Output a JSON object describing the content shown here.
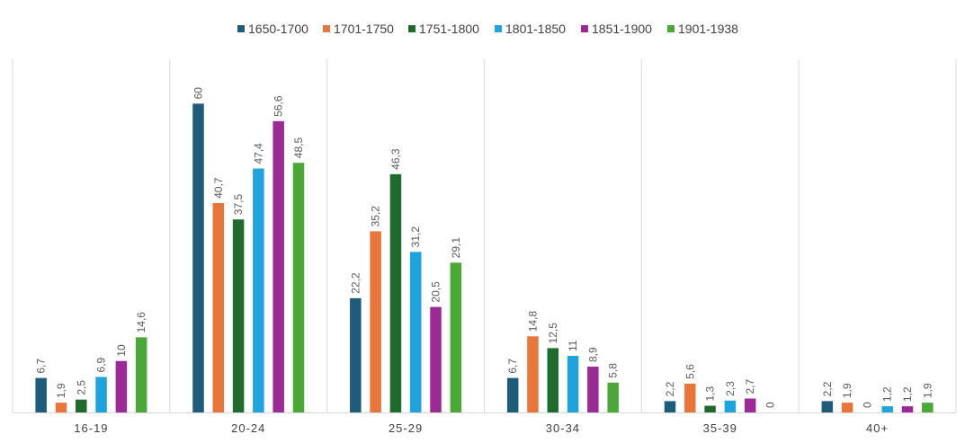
{
  "chart_data": {
    "type": "bar",
    "title": "",
    "xlabel": "",
    "ylabel": "",
    "ylim": [
      0,
      66
    ],
    "grid": false,
    "legend_position": "top",
    "categories": [
      "16-19",
      "20-24",
      "25-29",
      "30-34",
      "35-39",
      "40+"
    ],
    "value_labels": true,
    "series": [
      {
        "name": "1650-1700",
        "color": "#1f5c7a",
        "values": [
          6.7,
          60,
          22.2,
          6.7,
          2.2,
          2.2
        ],
        "labels": [
          "6,7",
          "60",
          "22,2",
          "6,7",
          "2,2",
          "2,2"
        ]
      },
      {
        "name": "1701-1750",
        "color": "#e8763a",
        "values": [
          1.9,
          40.7,
          35.2,
          14.8,
          5.6,
          1.9
        ],
        "labels": [
          "1,9",
          "40,7",
          "35,2",
          "14,8",
          "5,6",
          "1,9"
        ]
      },
      {
        "name": "1751-1800",
        "color": "#1e6b2e",
        "values": [
          2.5,
          37.5,
          46.3,
          12.5,
          1.3,
          0
        ],
        "labels": [
          "2,5",
          "37,5",
          "46,3",
          "12,5",
          "1,3",
          "0"
        ]
      },
      {
        "name": "1801-1850",
        "color": "#1fa3dc",
        "values": [
          6.9,
          47.4,
          31.2,
          11,
          2.3,
          1.2
        ],
        "labels": [
          "6,9",
          "47,4",
          "31,2",
          "11",
          "2,3",
          "1,2"
        ]
      },
      {
        "name": "1851-1900",
        "color": "#9b2a96",
        "values": [
          10,
          56.6,
          20.5,
          8.9,
          2.7,
          1.2
        ],
        "labels": [
          "10",
          "56,6",
          "20,5",
          "8,9",
          "2,7",
          "1,2"
        ]
      },
      {
        "name": "1901-1938",
        "color": "#4aa836",
        "values": [
          14.6,
          48.5,
          29.1,
          5.8,
          0,
          1.9
        ],
        "labels": [
          "14,6",
          "48,5",
          "29,1",
          "5,8",
          "0",
          "1,9"
        ]
      }
    ]
  }
}
